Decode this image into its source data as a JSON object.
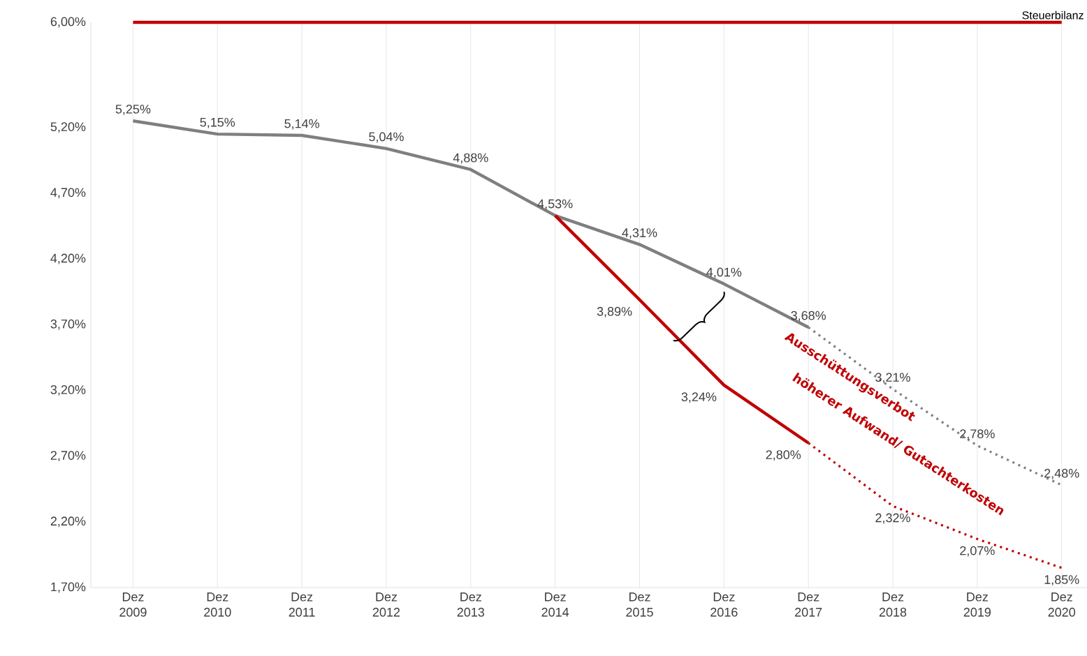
{
  "chart_data": {
    "type": "line",
    "categories": [
      "Dez 2009",
      "Dez 2010",
      "Dez 2011",
      "Dez 2012",
      "Dez 2013",
      "Dez 2014",
      "Dez 2015",
      "Dez 2016",
      "Dez 2017",
      "Dez 2018",
      "Dez 2019",
      "Dez 2020"
    ],
    "series": [
      {
        "name": "Steuerbilanz",
        "color": "#c00000",
        "values": [
          6.0,
          6.0,
          6.0,
          6.0,
          6.0,
          6.0,
          6.0,
          6.0,
          6.0,
          6.0,
          6.0,
          6.0
        ],
        "line_style": "solid"
      },
      {
        "color": "#7f7f7f",
        "values": [
          5.25,
          5.15,
          5.14,
          5.04,
          4.88,
          4.53,
          4.31,
          4.01,
          3.68,
          null,
          null,
          null
        ],
        "line_style": "solid",
        "value_labels": [
          "5,25%",
          "5,15%",
          "5,14%",
          "5,04%",
          "4,88%",
          "4,53%",
          "4,31%",
          "4,01%",
          "3,68%",
          null,
          null,
          null
        ]
      },
      {
        "color": "#7f7f7f",
        "values": [
          null,
          null,
          null,
          null,
          null,
          null,
          null,
          null,
          3.68,
          3.21,
          2.78,
          2.48
        ],
        "line_style": "dotted",
        "value_labels": [
          null,
          null,
          null,
          null,
          null,
          null,
          null,
          null,
          null,
          "3,21%",
          "2,78%",
          "2,48%"
        ]
      },
      {
        "color": "#c00000",
        "values": [
          null,
          null,
          null,
          null,
          null,
          4.53,
          3.89,
          3.24,
          2.8,
          null,
          null,
          null
        ],
        "line_style": "solid",
        "value_labels": [
          null,
          null,
          null,
          null,
          null,
          null,
          "3,89%",
          "3,24%",
          "2,80%",
          null,
          null,
          null
        ]
      },
      {
        "color": "#c00000",
        "values": [
          null,
          null,
          null,
          null,
          null,
          null,
          null,
          null,
          2.8,
          2.32,
          2.07,
          1.85
        ],
        "line_style": "dotted",
        "value_labels": [
          null,
          null,
          null,
          null,
          null,
          null,
          null,
          null,
          null,
          "2,32%",
          "2,07%",
          "1,85%"
        ]
      }
    ],
    "ylim": [
      1.7,
      6.0
    ],
    "yticks": [
      {
        "value": 1.7,
        "label": "1,70%"
      },
      {
        "value": 2.2,
        "label": "2,20%"
      },
      {
        "value": 2.7,
        "label": "2,70%"
      },
      {
        "value": 3.2,
        "label": "3,20%"
      },
      {
        "value": 3.7,
        "label": "3,70%"
      },
      {
        "value": 4.2,
        "label": "4,20%"
      },
      {
        "value": 4.7,
        "label": "4,70%"
      },
      {
        "value": 5.2,
        "label": "5,20%"
      },
      {
        "value": 6.0,
        "label": "6,00%"
      }
    ],
    "grid": "x",
    "legend": false,
    "marker": "none",
    "annotations": [
      "Ausschüttungsverbot",
      "höherer Aufwand/ Gutachterkosten"
    ]
  }
}
